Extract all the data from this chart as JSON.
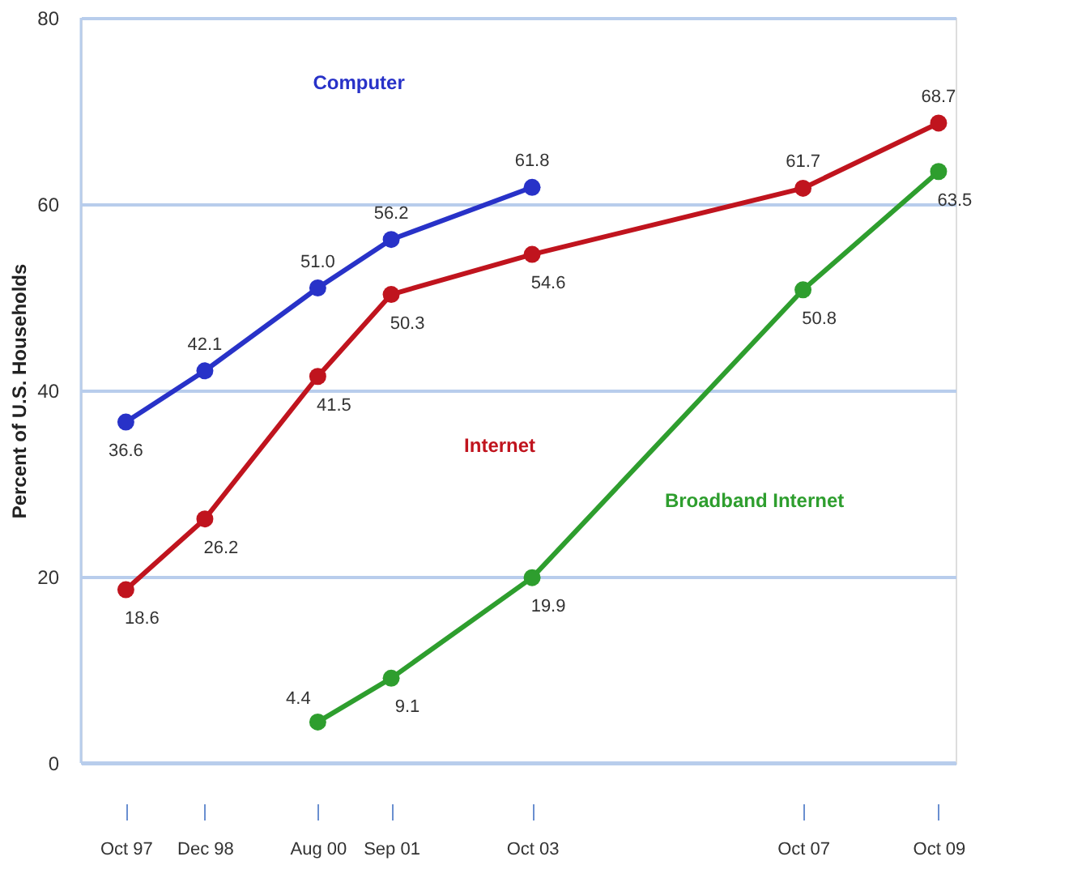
{
  "chart_data": {
    "type": "line",
    "ylabel": "Percent of U.S. Households",
    "x": [
      "1997-10",
      "1998-12",
      "2000-08",
      "2001-09",
      "2003-10",
      "2007-10",
      "2009-10"
    ],
    "xlim": [
      "1997-02",
      "2010-01"
    ],
    "xticks": [
      {
        "value": "1997-10",
        "label": "Oct 97"
      },
      {
        "value": "1998-12",
        "label": "Dec 98"
      },
      {
        "value": "2000-08",
        "label": "Aug 00"
      },
      {
        "value": "2001-09",
        "label": "Sep 01"
      },
      {
        "value": "2003-10",
        "label": "Oct 03"
      },
      {
        "value": "2007-10",
        "label": "Oct 07"
      },
      {
        "value": "2009-10",
        "label": "Oct 09"
      }
    ],
    "ylim": [
      0,
      80
    ],
    "yticks": [
      0,
      20,
      40,
      60,
      80
    ],
    "grid": "y",
    "legend": false,
    "marker": "circle",
    "line_style": "solid",
    "series": [
      {
        "name": "Computer",
        "color": "#2832c8",
        "values": [
          36.6,
          42.1,
          51.0,
          56.2,
          61.8,
          null,
          null
        ],
        "value_labels": [
          "36.6",
          "42.1",
          "51.0",
          "56.2",
          "61.8",
          null,
          null
        ]
      },
      {
        "name": "Internet",
        "color": "#c0141e",
        "values": [
          18.6,
          26.2,
          41.5,
          50.3,
          54.6,
          61.7,
          68.7
        ],
        "value_labels": [
          "18.6",
          "26.2",
          "41.5",
          "50.3",
          "54.6",
          "61.7",
          "68.7"
        ]
      },
      {
        "name": "Broadband Internet",
        "color": "#2e9e2e",
        "values": [
          null,
          null,
          4.4,
          9.1,
          19.9,
          50.8,
          63.5
        ],
        "value_labels": [
          null,
          null,
          "4.4",
          "9.1",
          "19.9",
          "50.8",
          "63.5"
        ]
      }
    ]
  }
}
